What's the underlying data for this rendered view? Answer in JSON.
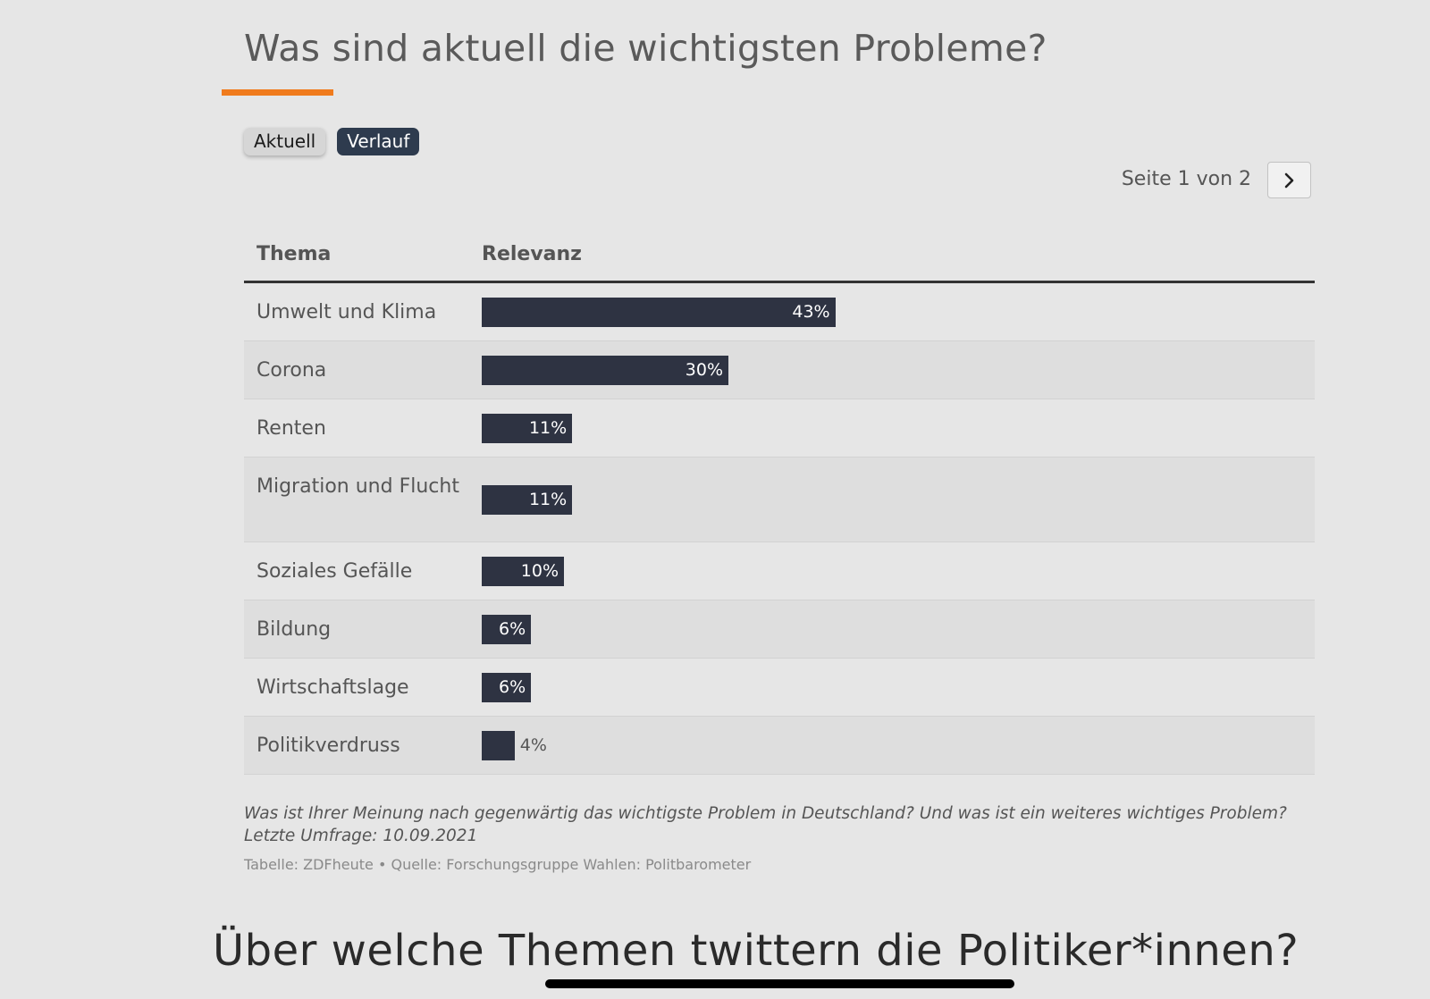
{
  "header": {
    "title": "Was sind aktuell die wichtigsten Probleme?",
    "accent_color": "#f07b1d"
  },
  "tabs": [
    {
      "label": "Aktuell",
      "selected": false
    },
    {
      "label": "Verlauf",
      "selected": true
    }
  ],
  "pagination": {
    "label": "Seite 1 von 2",
    "next_icon": "chevron-right-icon"
  },
  "chart_data": {
    "type": "bar",
    "orientation": "horizontal",
    "column_headers": [
      "Thema",
      "Relevanz"
    ],
    "categories": [
      "Umwelt und Klima",
      "Corona",
      "Renten",
      "Migration und Flucht",
      "Soziales Gefälle",
      "Bildung",
      "Wirtschaftslage",
      "Politikverdruss"
    ],
    "values": [
      43,
      30,
      11,
      11,
      10,
      6,
      6,
      4
    ],
    "value_labels": [
      "43%",
      "30%",
      "11%",
      "11%",
      "10%",
      "6%",
      "6%",
      "4%"
    ],
    "unit": "%",
    "bar_color": "#2e3342"
  },
  "footnote": {
    "question": "Was ist Ihrer Meinung nach gegenwärtig das wichtigste Problem in Deutschland? Und was ist ein weiteres wichtiges Problem?",
    "survey_date": "Letzte Umfrage: 10.09.2021",
    "source": "Tabelle: ZDFheute • Quelle: Forschungsgruppe Wahlen: Politbarometer"
  },
  "next_section": {
    "heading": "Über welche Themen twittern die Politiker*innen?"
  }
}
